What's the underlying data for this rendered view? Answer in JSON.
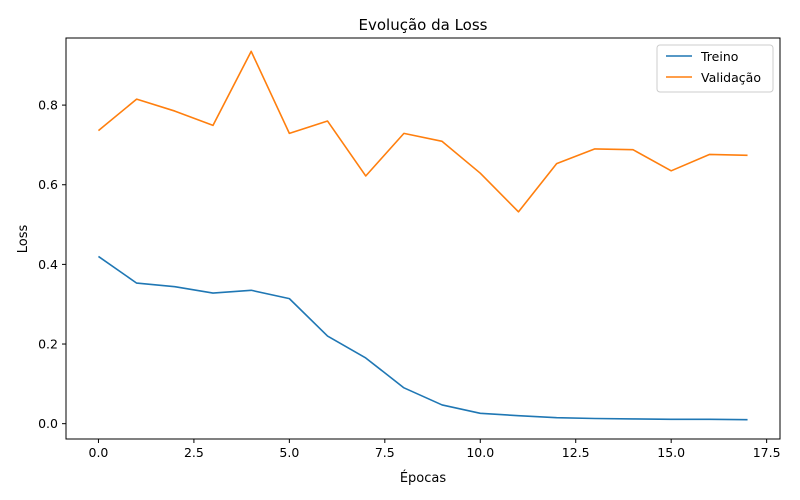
{
  "chart_data": {
    "type": "line",
    "title": "Evolução da Loss",
    "xlabel": "Épocas",
    "ylabel": "Loss",
    "xlim": [
      -0.85,
      17.85
    ],
    "ylim": [
      -0.0385,
      0.9685
    ],
    "xticks": [
      0.0,
      2.5,
      5.0,
      7.5,
      10.0,
      12.5,
      15.0,
      17.5
    ],
    "xtick_labels": [
      "0.0",
      "2.5",
      "5.0",
      "7.5",
      "10.0",
      "12.5",
      "15.0",
      "17.5"
    ],
    "yticks": [
      0.0,
      0.2,
      0.4,
      0.6,
      0.8
    ],
    "ytick_labels": [
      "0.0",
      "0.2",
      "0.4",
      "0.6",
      "0.8"
    ],
    "grid": false,
    "legend_position": "top-right",
    "x": [
      0,
      1,
      2,
      3,
      4,
      5,
      6,
      7,
      8,
      9,
      10,
      11,
      12,
      13,
      14,
      15,
      16,
      17
    ],
    "series": [
      {
        "name": "Treino",
        "color": "#1f77b4",
        "values": [
          0.42,
          0.353,
          0.344,
          0.328,
          0.335,
          0.314,
          0.22,
          0.165,
          0.09,
          0.047,
          0.026,
          0.02,
          0.015,
          0.013,
          0.012,
          0.011,
          0.011,
          0.01
        ]
      },
      {
        "name": "Validação",
        "color": "#ff7f0e",
        "values": [
          0.736,
          0.815,
          0.785,
          0.749,
          0.935,
          0.729,
          0.76,
          0.622,
          0.729,
          0.709,
          0.629,
          0.532,
          0.653,
          0.69,
          0.688,
          0.635,
          0.676,
          0.674
        ]
      }
    ]
  }
}
